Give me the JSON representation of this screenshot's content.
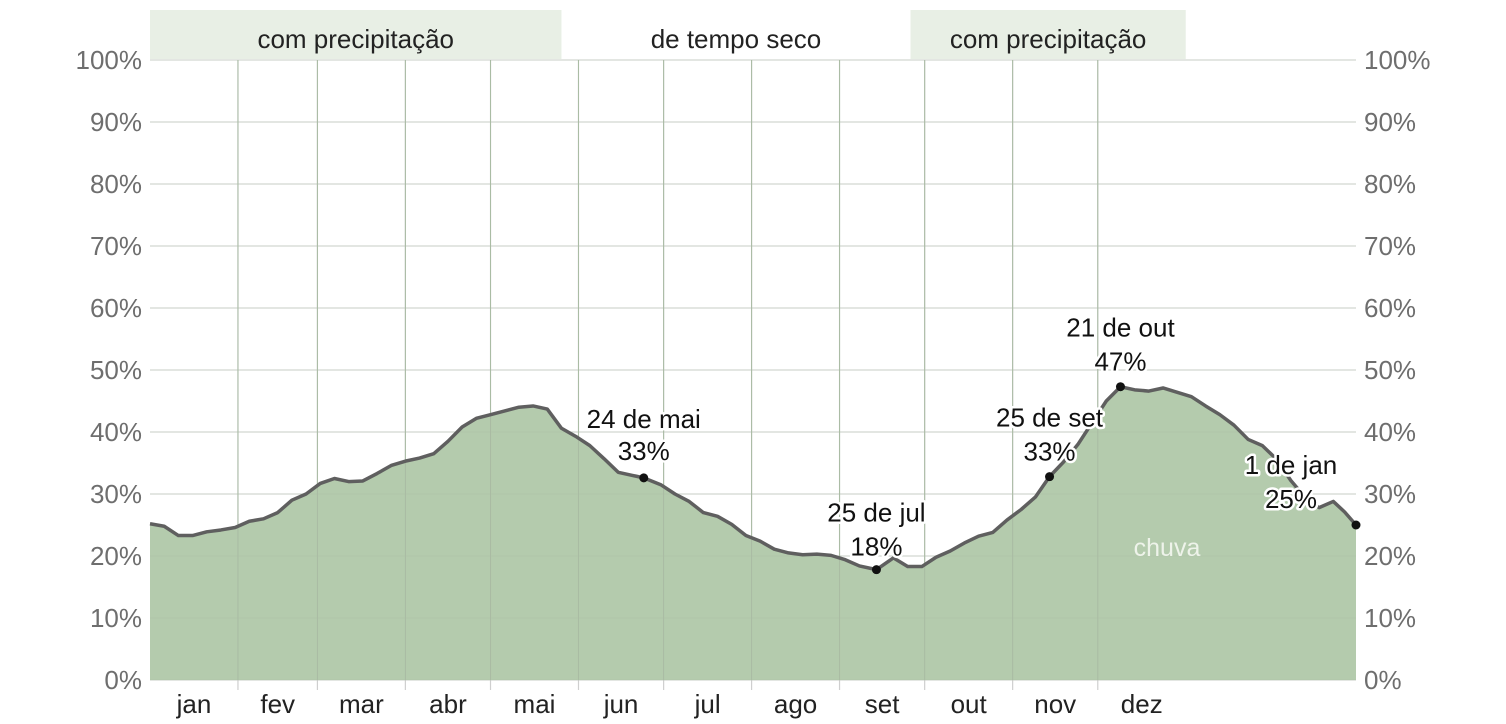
{
  "chart_data": {
    "type": "area",
    "y_ticks": [
      "0%",
      "10%",
      "20%",
      "30%",
      "40%",
      "50%",
      "60%",
      "70%",
      "80%",
      "90%",
      "100%"
    ],
    "ylim": [
      0,
      100
    ],
    "months": [
      "jan",
      "fev",
      "mar",
      "abr",
      "mai",
      "jun",
      "jul",
      "ago",
      "set",
      "out",
      "nov",
      "dez"
    ],
    "season_bands": [
      {
        "label": "com precipitação",
        "start_day": 0,
        "end_day": 145,
        "shaded": true
      },
      {
        "label": "de tempo seco",
        "start_day": 145,
        "end_day": 268,
        "shaded": false
      },
      {
        "label": "com precipitação",
        "start_day": 268,
        "end_day": 365,
        "shaded": true
      }
    ],
    "series": [
      {
        "name": "chuva",
        "color": "#b4cbad",
        "line_color": "#5f5f5f",
        "points": [
          [
            0,
            25.2
          ],
          [
            5,
            24.8
          ],
          [
            10,
            23.3
          ],
          [
            15,
            23.3
          ],
          [
            20,
            23.9
          ],
          [
            25,
            24.2
          ],
          [
            30,
            24.6
          ],
          [
            35,
            25.6
          ],
          [
            40,
            26.0
          ],
          [
            45,
            27.0
          ],
          [
            50,
            29.0
          ],
          [
            55,
            30.0
          ],
          [
            60,
            31.7
          ],
          [
            65,
            32.5
          ],
          [
            70,
            32.0
          ],
          [
            75,
            32.1
          ],
          [
            80,
            33.3
          ],
          [
            85,
            34.6
          ],
          [
            90,
            35.3
          ],
          [
            95,
            35.8
          ],
          [
            100,
            36.5
          ],
          [
            105,
            38.5
          ],
          [
            110,
            40.8
          ],
          [
            115,
            42.2
          ],
          [
            120,
            42.8
          ],
          [
            125,
            43.4
          ],
          [
            130,
            44.0
          ],
          [
            135,
            44.2
          ],
          [
            140,
            43.7
          ],
          [
            145,
            40.6
          ],
          [
            150,
            39.3
          ],
          [
            155,
            37.8
          ],
          [
            160,
            35.7
          ],
          [
            165,
            33.5
          ],
          [
            170,
            33.0
          ],
          [
            174,
            32.6
          ],
          [
            180,
            31.5
          ],
          [
            185,
            30.0
          ],
          [
            190,
            28.8
          ],
          [
            195,
            27.0
          ],
          [
            200,
            26.4
          ],
          [
            205,
            25.1
          ],
          [
            210,
            23.3
          ],
          [
            215,
            22.4
          ],
          [
            220,
            21.1
          ],
          [
            225,
            20.5
          ],
          [
            230,
            20.2
          ],
          [
            235,
            20.3
          ],
          [
            240,
            20.1
          ],
          [
            245,
            19.4
          ],
          [
            250,
            18.4
          ],
          [
            256,
            17.8
          ],
          [
            262,
            19.7
          ],
          [
            267,
            18.3
          ],
          [
            272,
            18.3
          ],
          [
            277,
            19.8
          ],
          [
            282,
            20.8
          ],
          [
            287,
            22.1
          ],
          [
            292,
            23.2
          ],
          [
            297,
            23.8
          ],
          [
            302,
            25.8
          ],
          [
            307,
            27.5
          ],
          [
            312,
            29.5
          ],
          [
            317,
            32.8
          ],
          [
            322,
            35.2
          ],
          [
            327,
            38.0
          ],
          [
            332,
            41.5
          ],
          [
            337,
            45.0
          ],
          [
            342,
            47.3
          ],
          [
            347,
            46.8
          ],
          [
            352,
            46.6
          ],
          [
            357,
            47.1
          ],
          [
            362,
            46.4
          ],
          [
            367,
            45.7
          ],
          [
            372,
            44.2
          ],
          [
            377,
            42.8
          ],
          [
            382,
            41.1
          ],
          [
            387,
            38.8
          ],
          [
            392,
            37.8
          ],
          [
            397,
            35.6
          ],
          [
            402,
            32.2
          ],
          [
            407,
            29.5
          ],
          [
            412,
            27.8
          ],
          [
            417,
            28.8
          ],
          [
            421,
            27.1
          ],
          [
            425,
            25.0
          ]
        ]
      }
    ],
    "annotations": [
      {
        "date": "24 de mai",
        "value": 33,
        "text_value": "33%",
        "x": 174,
        "y": 32.6
      },
      {
        "date": "25 de jul",
        "value": 18,
        "text_value": "18%",
        "x": 256,
        "y": 17.8
      },
      {
        "date": "25 de set",
        "value": 33,
        "text_value": "33%",
        "x": 317,
        "y": 32.8
      },
      {
        "date": "21 de out",
        "value": 47,
        "text_value": "47%",
        "x": 342,
        "y": 47.3
      },
      {
        "date": "1 de jan",
        "value": 25,
        "text_value": "25%",
        "x": 425,
        "y": 25.0
      }
    ]
  }
}
